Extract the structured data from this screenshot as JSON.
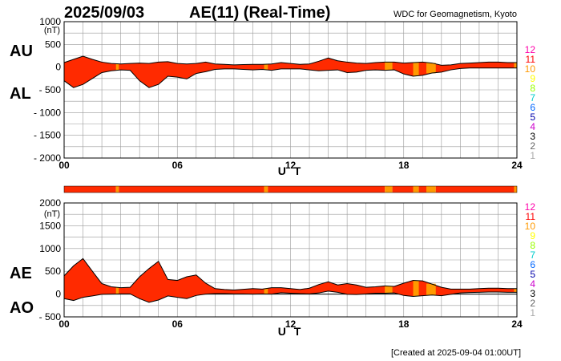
{
  "header": {
    "date": "2025/09/03",
    "title": "AE(11) (Real-Time)",
    "source": "WDC for Geomagnetism, Kyoto"
  },
  "footer": {
    "created": "[Created at 2025-09-04 01:00UT]"
  },
  "station_legend": {
    "labels": [
      "12",
      "11",
      "10",
      "9",
      "8",
      "7",
      "6",
      "5",
      "4",
      "3",
      "2",
      "1"
    ],
    "colors": [
      "#ff00aa",
      "#ff0000",
      "#ff9900",
      "#ffff00",
      "#99ff00",
      "#00cccc",
      "#0066ff",
      "#0000aa",
      "#cc00cc",
      "#000000",
      "#666666",
      "#aaaaaa"
    ]
  },
  "colors": {
    "fill_main": "#ff2a00",
    "fill_alt": "#ff9900",
    "grid": "#999999"
  },
  "chart_data": [
    {
      "type": "area",
      "name": "AU/AL",
      "labels": {
        "upper": "AU",
        "lower": "AL",
        "unit": "(nT)",
        "xlabel": "U T"
      },
      "ylim": [
        -2000,
        1000
      ],
      "yticks": [
        1000,
        500,
        0,
        -500,
        -1000,
        -1500,
        -2000
      ],
      "ytick_labels": [
        "1000",
        "500",
        "0",
        "- 500",
        "- 1000",
        "- 1500",
        "- 2000"
      ],
      "xlim": [
        0,
        24
      ],
      "xticks": [
        0,
        6,
        12,
        18,
        24
      ],
      "xtick_labels": [
        "00",
        "06",
        "12",
        "18",
        "24"
      ],
      "series": [
        {
          "name": "AU",
          "x": [
            0,
            0.5,
            1,
            1.5,
            2,
            2.5,
            3,
            3.5,
            4,
            4.5,
            5,
            5.5,
            6,
            6.5,
            7,
            7.5,
            8,
            8.5,
            9,
            9.5,
            10,
            10.5,
            11,
            11.5,
            12,
            12.5,
            13,
            13.5,
            14,
            14.5,
            15,
            15.5,
            16,
            16.5,
            17,
            17.5,
            18,
            18.5,
            19,
            19.5,
            20,
            20.5,
            21,
            21.5,
            22,
            22.5,
            23,
            23.5,
            24
          ],
          "values": [
            100,
            170,
            240,
            170,
            110,
            80,
            70,
            80,
            90,
            80,
            110,
            120,
            80,
            70,
            80,
            110,
            70,
            60,
            50,
            55,
            60,
            60,
            70,
            100,
            80,
            60,
            70,
            130,
            200,
            140,
            110,
            90,
            80,
            100,
            110,
            110,
            90,
            100,
            110,
            90,
            40,
            50,
            80,
            90,
            100,
            110,
            110,
            100,
            100
          ]
        },
        {
          "name": "AL",
          "x": [
            0,
            0.5,
            1,
            1.5,
            2,
            2.5,
            3,
            3.5,
            4,
            4.5,
            5,
            5.5,
            6,
            6.5,
            7,
            7.5,
            8,
            8.5,
            9,
            9.5,
            10,
            10.5,
            11,
            11.5,
            12,
            12.5,
            13,
            13.5,
            14,
            14.5,
            15,
            15.5,
            16,
            16.5,
            17,
            17.5,
            18,
            18.5,
            19,
            19.5,
            20,
            20.5,
            21,
            21.5,
            22,
            22.5,
            23,
            23.5,
            24
          ],
          "values": [
            -300,
            -450,
            -380,
            -250,
            -120,
            -80,
            -60,
            -70,
            -300,
            -450,
            -380,
            -200,
            -220,
            -260,
            -140,
            -100,
            -50,
            -40,
            -40,
            -50,
            -60,
            -50,
            -70,
            -40,
            -40,
            -40,
            -60,
            -80,
            -70,
            -60,
            -120,
            -110,
            -70,
            -60,
            -70,
            -60,
            -150,
            -200,
            -180,
            -130,
            -110,
            -60,
            -30,
            -20,
            -20,
            -20,
            -20,
            -20,
            -20
          ]
        }
      ]
    },
    {
      "type": "area",
      "name": "AE/AO",
      "labels": {
        "upper": "AE",
        "lower": "AO",
        "unit": "(nT)",
        "xlabel": "U T"
      },
      "ylim": [
        -500,
        2000
      ],
      "yticks": [
        2000,
        1500,
        1000,
        500,
        0,
        -500
      ],
      "ytick_labels": [
        "2000",
        "1500",
        "1000",
        "500",
        "0",
        "- 500"
      ],
      "xlim": [
        0,
        24
      ],
      "xticks": [
        0,
        6,
        12,
        18,
        24
      ],
      "xtick_labels": [
        "00",
        "06",
        "12",
        "18",
        "24"
      ],
      "series": [
        {
          "name": "AE",
          "x": [
            0,
            0.5,
            1,
            1.5,
            2,
            2.5,
            3,
            3.5,
            4,
            4.5,
            5,
            5.5,
            6,
            6.5,
            7,
            7.5,
            8,
            8.5,
            9,
            9.5,
            10,
            10.5,
            11,
            11.5,
            12,
            12.5,
            13,
            13.5,
            14,
            14.5,
            15,
            15.5,
            16,
            16.5,
            17,
            17.5,
            18,
            18.5,
            19,
            19.5,
            20,
            20.5,
            21,
            21.5,
            22,
            22.5,
            23,
            23.5,
            24
          ],
          "values": [
            400,
            620,
            780,
            500,
            230,
            160,
            140,
            150,
            380,
            560,
            720,
            320,
            300,
            380,
            420,
            240,
            120,
            100,
            90,
            105,
            120,
            110,
            140,
            140,
            120,
            100,
            130,
            210,
            270,
            200,
            230,
            200,
            150,
            160,
            180,
            170,
            240,
            300,
            290,
            220,
            150,
            110,
            110,
            110,
            120,
            130,
            130,
            120,
            120
          ]
        },
        {
          "name": "AO",
          "x": [
            0,
            0.5,
            1,
            1.5,
            2,
            2.5,
            3,
            3.5,
            4,
            4.5,
            5,
            5.5,
            6,
            6.5,
            7,
            7.5,
            8,
            8.5,
            9,
            9.5,
            10,
            10.5,
            11,
            11.5,
            12,
            12.5,
            13,
            13.5,
            14,
            14.5,
            15,
            15.5,
            16,
            16.5,
            17,
            17.5,
            18,
            18.5,
            19,
            19.5,
            20,
            20.5,
            21,
            21.5,
            22,
            22.5,
            23,
            23.5,
            24
          ],
          "values": [
            -100,
            -140,
            -70,
            -40,
            -5,
            0,
            5,
            5,
            -100,
            -180,
            -130,
            -40,
            -70,
            -100,
            -30,
            0,
            10,
            10,
            5,
            3,
            0,
            5,
            0,
            30,
            20,
            10,
            5,
            25,
            65,
            40,
            -5,
            -10,
            5,
            20,
            20,
            25,
            -30,
            -50,
            -35,
            -20,
            -35,
            -5,
            25,
            35,
            40,
            45,
            45,
            40,
            40
          ]
        }
      ]
    }
  ],
  "status_bars": [
    {
      "name": "top",
      "segments": [
        [
          0,
          2.75,
          "main"
        ],
        [
          2.75,
          2.9,
          "alt"
        ],
        [
          2.9,
          10.6,
          "main"
        ],
        [
          10.6,
          10.8,
          "alt"
        ],
        [
          10.8,
          17,
          "main"
        ],
        [
          17,
          17.4,
          "alt"
        ],
        [
          17.4,
          18.5,
          "main"
        ],
        [
          18.5,
          18.8,
          "alt"
        ],
        [
          18.8,
          19.2,
          "main"
        ],
        [
          19.2,
          19.7,
          "alt"
        ],
        [
          19.7,
          23.85,
          "main"
        ],
        [
          23.85,
          24,
          "alt"
        ]
      ]
    }
  ]
}
